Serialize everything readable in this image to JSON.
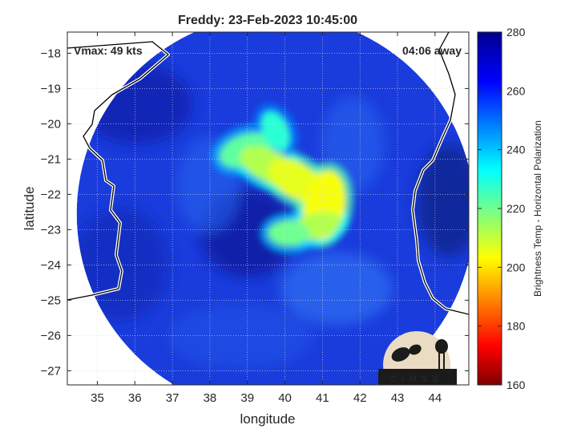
{
  "chart_data": {
    "type": "heatmap",
    "title": "Freddy: 23-Feb-2023 10:45:00",
    "xlabel": "longitude",
    "ylabel": "latitude",
    "xlim": [
      34.2,
      44.9
    ],
    "ylim": [
      -27.4,
      -17.4
    ],
    "xticks": [
      35,
      36,
      37,
      38,
      39,
      40,
      41,
      42,
      43,
      44
    ],
    "yticks": [
      -18,
      -19,
      -20,
      -21,
      -22,
      -23,
      -24,
      -25,
      -26,
      -27
    ],
    "grid": true,
    "annotations": {
      "vmax": "Vmax: 49 kts",
      "away": "04:06 away"
    },
    "colorbar": {
      "label": "Brightness Temp - Horizontal Polarization",
      "range": [
        160,
        280
      ],
      "ticks": [
        280,
        260,
        240,
        220,
        200,
        180,
        160
      ],
      "colormap": [
        "#7f0000",
        "#ff0000",
        "#ffff00",
        "#00ffff",
        "#0000ff",
        "#00008f"
      ]
    },
    "swath": {
      "center": [
        39.75,
        -22.55
      ],
      "radius_deg": 5.3
    },
    "cold_band": [
      {
        "lon": 38.95,
        "lat": -20.75,
        "tb": 222
      },
      {
        "lon": 39.6,
        "lat": -21.2,
        "tb": 212
      },
      {
        "lon": 40.3,
        "lat": -21.6,
        "tb": 206
      },
      {
        "lon": 41.05,
        "lat": -22.3,
        "tb": 204
      },
      {
        "lon": 40.8,
        "lat": -22.9,
        "tb": 212
      },
      {
        "lon": 40.1,
        "lat": -23.1,
        "tb": 220
      },
      {
        "lon": 39.75,
        "lat": -20.2,
        "tb": 228
      }
    ],
    "logo": "CIMSS"
  }
}
